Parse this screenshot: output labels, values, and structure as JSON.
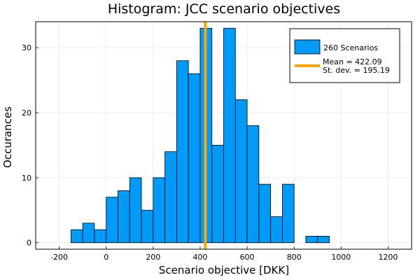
{
  "chart_data": {
    "type": "bar",
    "title": "Histogram: JCC scenario objectives",
    "xlabel": "Scenario objective [DKK]",
    "ylabel": "Occurances",
    "xlim": [
      -300,
      1300
    ],
    "ylim": [
      -1,
      34
    ],
    "xticks": [
      -200,
      0,
      200,
      400,
      600,
      800,
      1000,
      1200
    ],
    "yticks": [
      0,
      10,
      20,
      30
    ],
    "grid": true,
    "legend_position": "top-right",
    "bin_width": 50,
    "bins": [
      {
        "x0": -150,
        "x1": -100,
        "count": 2
      },
      {
        "x0": -100,
        "x1": -50,
        "count": 3
      },
      {
        "x0": -50,
        "x1": 0,
        "count": 2
      },
      {
        "x0": 0,
        "x1": 50,
        "count": 7
      },
      {
        "x0": 50,
        "x1": 100,
        "count": 8
      },
      {
        "x0": 100,
        "x1": 150,
        "count": 10
      },
      {
        "x0": 150,
        "x1": 200,
        "count": 5
      },
      {
        "x0": 200,
        "x1": 250,
        "count": 10
      },
      {
        "x0": 250,
        "x1": 300,
        "count": 14
      },
      {
        "x0": 300,
        "x1": 350,
        "count": 28
      },
      {
        "x0": 350,
        "x1": 400,
        "count": 26
      },
      {
        "x0": 400,
        "x1": 450,
        "count": 33
      },
      {
        "x0": 450,
        "x1": 500,
        "count": 15
      },
      {
        "x0": 500,
        "x1": 550,
        "count": 33
      },
      {
        "x0": 550,
        "x1": 600,
        "count": 22
      },
      {
        "x0": 600,
        "x1": 650,
        "count": 18
      },
      {
        "x0": 650,
        "x1": 700,
        "count": 9
      },
      {
        "x0": 700,
        "x1": 750,
        "count": 4
      },
      {
        "x0": 750,
        "x1": 800,
        "count": 9
      },
      {
        "x0": 800,
        "x1": 850,
        "count": 0
      },
      {
        "x0": 850,
        "x1": 900,
        "count": 1
      },
      {
        "x0": 900,
        "x1": 950,
        "count": 1
      }
    ],
    "mean_line": {
      "x": 422.09
    },
    "series": [
      {
        "name": "260 Scenarios",
        "color": "#009af9"
      },
      {
        "name": "Mean = 422.09",
        "name_line2": "St. dev. = 195.19",
        "color": "#ffa500"
      }
    ]
  }
}
